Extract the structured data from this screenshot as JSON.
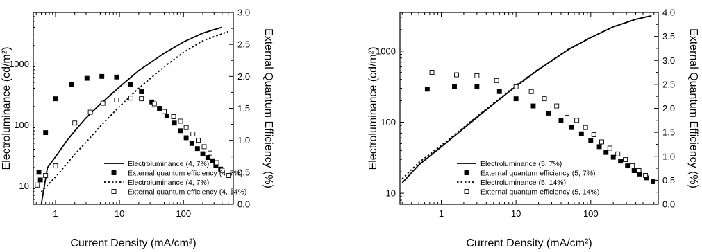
{
  "chart_data": [
    {
      "type": "scatter",
      "xlabel": "Current Density (mA/cm²)",
      "ylabel": "Electroluminance (cd/m²)",
      "y2label": "External Quantum Efficiency (%)",
      "xscale": "log",
      "yscale": "log",
      "xlim": [
        0.45,
        600
      ],
      "ylim": [
        5,
        7000
      ],
      "y2lim": [
        0,
        3.0
      ],
      "x_ticks": [
        1,
        10,
        100
      ],
      "y_ticks": [
        10,
        100,
        1000
      ],
      "y2_ticks": [
        0.0,
        0.5,
        1.0,
        1.5,
        2.0,
        2.5,
        3.0
      ],
      "legend_position": "bottom-center",
      "series": [
        {
          "name": "Electroluminance (4, 7%)",
          "style": "solid-line",
          "axis": "left",
          "x": [
            0.6,
            0.75,
            1.0,
            1.5,
            2.0,
            3.0,
            5.0,
            10,
            20,
            50,
            100,
            200,
            400
          ],
          "y": [
            5,
            20,
            30,
            55,
            80,
            130,
            220,
            420,
            780,
            1500,
            2300,
            3200,
            4000
          ]
        },
        {
          "name": "External quantum efficiency (4, 7%)",
          "style": "filled-square",
          "axis": "right",
          "x": [
            0.55,
            0.58,
            0.7,
            1.0,
            1.8,
            3.1,
            5.3,
            9.0,
            15,
            22,
            32,
            42,
            55,
            72,
            90,
            110,
            135,
            165,
            200,
            240,
            280,
            320,
            380
          ],
          "y": [
            0.5,
            0.38,
            1.12,
            1.65,
            1.87,
            1.97,
            2.0,
            1.99,
            1.87,
            1.76,
            1.6,
            1.5,
            1.38,
            1.27,
            1.15,
            1.04,
            0.95,
            0.87,
            0.79,
            0.73,
            0.68,
            0.61,
            0.55
          ]
        },
        {
          "name": "Electroluminance (4, 7%)",
          "style": "dotted-line",
          "axis": "left",
          "x": [
            0.6,
            0.8,
            1.0,
            1.5,
            2.0,
            3.0,
            5.0,
            10,
            20,
            50,
            100,
            200,
            500
          ],
          "y": [
            8,
            11,
            14,
            23,
            33,
            52,
            95,
            200,
            400,
            900,
            1550,
            2400,
            3400
          ]
        },
        {
          "name": "External quantum efficiency (4, 14%)",
          "style": "open-square",
          "axis": "right",
          "x": [
            0.52,
            0.7,
            1.0,
            2.0,
            3.5,
            5.5,
            9.0,
            15,
            22,
            35,
            50,
            70,
            90,
            110,
            140,
            170,
            210,
            260,
            330,
            400,
            500
          ],
          "y": [
            0.3,
            0.45,
            0.6,
            1.27,
            1.44,
            1.58,
            1.63,
            1.66,
            1.65,
            1.57,
            1.45,
            1.37,
            1.3,
            1.2,
            1.1,
            1.0,
            0.9,
            0.8,
            0.65,
            0.53,
            0.45
          ]
        }
      ]
    },
    {
      "type": "scatter",
      "xlabel": "Current Density (mA/cm²)",
      "ylabel": "Electroluminance (cd/m²)",
      "y2label": "External Quantum Efficiency (%)",
      "xscale": "log",
      "yscale": "log",
      "xlim": [
        0.28,
        800
      ],
      "ylim": [
        7,
        3500
      ],
      "y2lim": [
        0,
        4.0
      ],
      "x_ticks": [
        1,
        10,
        100
      ],
      "y_ticks": [
        10,
        100,
        1000
      ],
      "y2_ticks": [
        0.0,
        0.5,
        1.0,
        1.5,
        2.0,
        2.5,
        3.0,
        3.5,
        4.0
      ],
      "legend_position": "bottom-center",
      "series": [
        {
          "name": "Electroluminance (5, 7%)",
          "style": "solid-line",
          "axis": "left",
          "x": [
            0.3,
            0.5,
            1.0,
            2.0,
            5.0,
            10,
            20,
            50,
            100,
            200,
            400,
            650
          ],
          "y": [
            14,
            25,
            45,
            82,
            180,
            320,
            550,
            1050,
            1550,
            2200,
            2800,
            3150
          ]
        },
        {
          "name": "External quantum efficiency (5, 7%)",
          "style": "filled-square",
          "axis": "right",
          "x": [
            0.65,
            1.5,
            3.0,
            6.0,
            10,
            17,
            27,
            40,
            55,
            75,
            100,
            130,
            160,
            200,
            250,
            310,
            380,
            450,
            550,
            680
          ],
          "y": [
            2.4,
            2.45,
            2.45,
            2.35,
            2.2,
            2.05,
            1.9,
            1.75,
            1.6,
            1.47,
            1.33,
            1.2,
            1.08,
            0.98,
            0.9,
            0.8,
            0.7,
            0.63,
            0.55,
            0.47
          ]
        },
        {
          "name": "Electroluminance (5, 14%)",
          "style": "dotted-line",
          "axis": "left",
          "x": [
            0.3,
            0.5,
            1.0,
            2.0,
            5.0,
            10,
            20,
            50,
            100,
            200,
            400,
            650
          ],
          "y": [
            16,
            27,
            47,
            85,
            185,
            330,
            560,
            1060,
            1560,
            2200,
            2800,
            3150
          ]
        },
        {
          "name": "External quantum efficiency (5, 14%)",
          "style": "open-square",
          "axis": "right",
          "x": [
            0.75,
            1.6,
            3.0,
            5.5,
            10,
            16,
            24,
            35,
            48,
            65,
            85,
            110,
            140,
            180,
            230,
            290,
            360,
            440,
            540
          ],
          "y": [
            2.75,
            2.7,
            2.68,
            2.58,
            2.45,
            2.35,
            2.2,
            2.05,
            1.9,
            1.75,
            1.6,
            1.45,
            1.3,
            1.17,
            1.05,
            0.93,
            0.8,
            0.7,
            0.6
          ]
        }
      ]
    }
  ]
}
